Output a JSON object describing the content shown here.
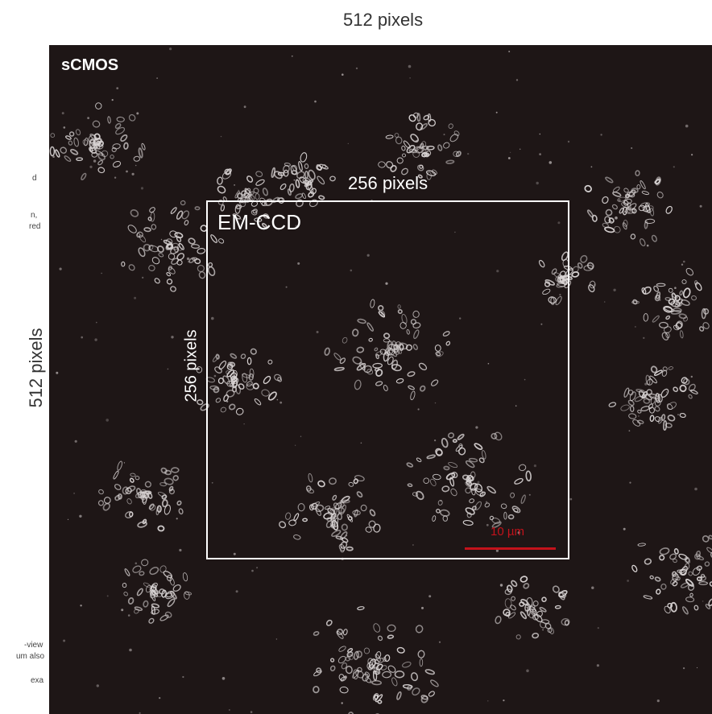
{
  "labels": {
    "top": "512 pixels",
    "left": "512 pixels",
    "camera": "sCMOS",
    "roi_name": "EM-CCD",
    "roi_top": "256 pixels",
    "roi_left": "256 pixels",
    "scale": "10 µm"
  },
  "side_fragments": [
    "d",
    "n,",
    "red",
    "-view",
    "um also",
    "exa"
  ],
  "colors": {
    "background": "#1e1616",
    "scalebar": "#c4121b",
    "roi": "#ffffff"
  }
}
